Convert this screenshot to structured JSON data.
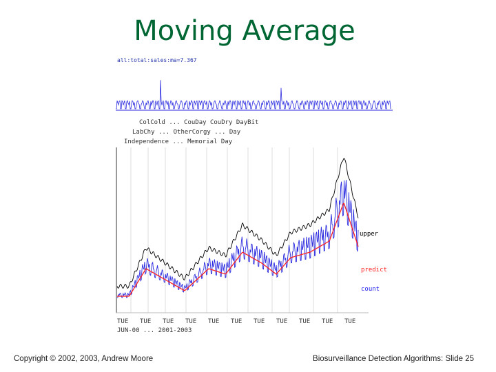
{
  "slide": {
    "title": "Moving Average",
    "footer_left": "Copyright © 2002, 2003, Andrew Moore",
    "footer_right": "Biosurveillance Detection Algorithms: Slide 25"
  },
  "chart_data": {
    "type": "line",
    "top_strip_label": "all:total:sales:ma=7.367",
    "legend_rows": [
      "ColCold ... CouDay CouDry DayBit",
      "LabChy ... OtherCorgy ... Day",
      "Independence ... Memorial Day"
    ],
    "series": [
      {
        "name": "upper",
        "color": "#000000"
      },
      {
        "name": "predict",
        "color": "#ff2020"
      },
      {
        "name": "count",
        "color": "#2020ee"
      }
    ],
    "x_tick_labels": [
      "TUE",
      "TUE",
      "TUE",
      "TUE",
      "TUE",
      "TUE",
      "TUE",
      "TUE",
      "TUE",
      "TUE",
      "TUE"
    ],
    "x_range_label": "JUN-00 ... 2001-2003",
    "colors": {
      "title": "#006633",
      "upper": "#000000",
      "predict": "#ff2020",
      "count": "#2020ee"
    }
  }
}
